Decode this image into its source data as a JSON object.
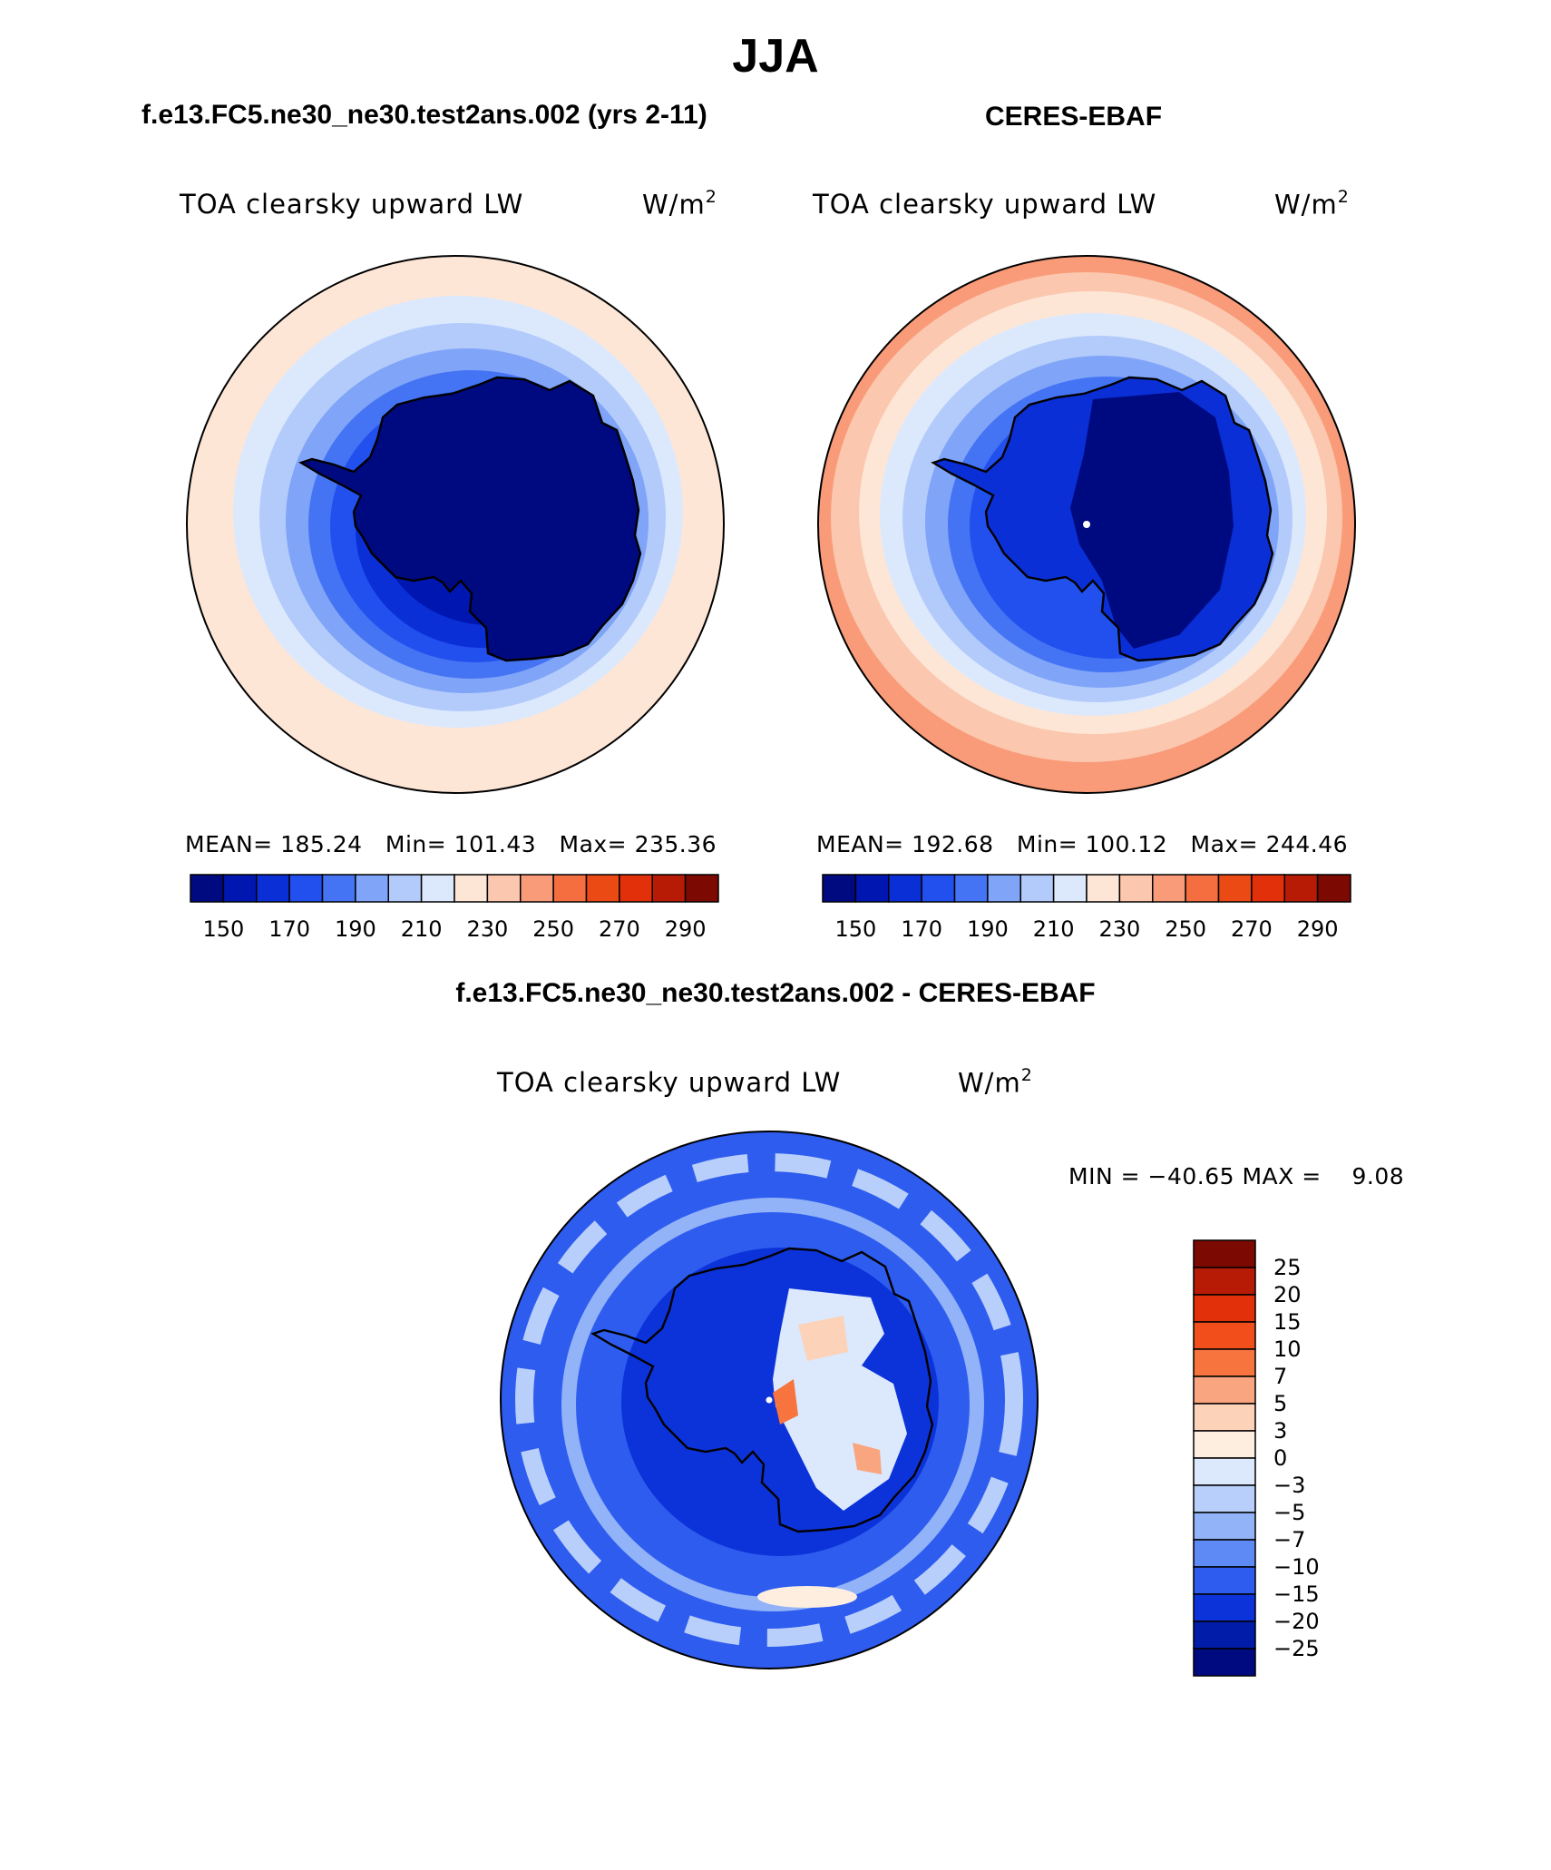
{
  "title": "JJA",
  "panels": [
    {
      "id": "model",
      "title": "f.e13.FC5.ne30_ne30.test2ans.002 (yrs 2-11)",
      "variable": "TOA clearsky upward LW",
      "units_base": "W/m",
      "units_exp": "2",
      "stats": {
        "mean_label": "MEAN=",
        "mean": "185.24",
        "min_label": "Min=",
        "min": "101.43",
        "max_label": "Max=",
        "max": "235.36"
      },
      "colorbar_ticks": [
        "150",
        "170",
        "190",
        "210",
        "230",
        "250",
        "270",
        "290"
      ]
    },
    {
      "id": "obs",
      "title": "CERES-EBAF",
      "variable": "TOA clearsky upward LW",
      "units_base": "W/m",
      "units_exp": "2",
      "stats": {
        "mean_label": "MEAN=",
        "mean": "192.68",
        "min_label": "Min=",
        "min": "100.12",
        "max_label": "Max=",
        "max": "244.46"
      },
      "colorbar_ticks": [
        "150",
        "170",
        "190",
        "210",
        "230",
        "250",
        "270",
        "290"
      ]
    },
    {
      "id": "diff",
      "title": "f.e13.FC5.ne30_ne30.test2ans.002 - CERES-EBAF",
      "variable": "TOA clearsky upward LW",
      "units_base": "W/m",
      "units_exp": "2",
      "stats": {
        "min_label": "MIN =",
        "min": "−40.65",
        "max_label": "MAX =",
        "max": "9.08"
      },
      "colorbar_ticks": [
        "25",
        "20",
        "15",
        "10",
        "7",
        "5",
        "3",
        "0",
        "−3",
        "−5",
        "−7",
        "−10",
        "−15",
        "−20",
        "−25"
      ]
    }
  ],
  "colors": {
    "seq_palette": [
      "#000a80",
      "#0016b0",
      "#0a2fd6",
      "#2250ee",
      "#4474f3",
      "#7fa4f8",
      "#b3cbfb",
      "#dce9fd",
      "#fde6d6",
      "#fbc7ae",
      "#f99b78",
      "#f46e40",
      "#ec4a14",
      "#e1300a",
      "#b81b05",
      "#7d0a02"
    ],
    "diff_palette": [
      "#7d0a02",
      "#b81b05",
      "#e1300a",
      "#f14e1c",
      "#f7743f",
      "#f9a57f",
      "#fcd2b9",
      "#fdeedf",
      "#dce9fd",
      "#b8cffb",
      "#92b3f8",
      "#5d8af4",
      "#2e5cef",
      "#0c33d9",
      "#001ca8",
      "#000a80"
    ]
  }
}
